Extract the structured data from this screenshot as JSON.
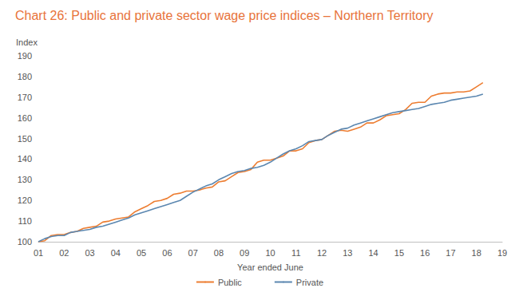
{
  "chart_data": {
    "type": "line",
    "title": "Chart 26: Public and private sector wage price indices – Northern Territory",
    "x_label": "Year ended June",
    "y_label": "Index",
    "x": [
      2001,
      2001.25,
      2001.5,
      2001.75,
      2002,
      2002.25,
      2002.5,
      2002.75,
      2003,
      2003.25,
      2003.5,
      2003.75,
      2004,
      2004.25,
      2004.5,
      2004.75,
      2005,
      2005.25,
      2005.5,
      2005.75,
      2006,
      2006.25,
      2006.5,
      2006.75,
      2007,
      2007.25,
      2007.5,
      2007.75,
      2008,
      2008.25,
      2008.5,
      2008.75,
      2009,
      2009.25,
      2009.5,
      2009.75,
      2010,
      2010.25,
      2010.5,
      2010.75,
      2011,
      2011.25,
      2011.5,
      2011.75,
      2012,
      2012.25,
      2012.5,
      2012.75,
      2013,
      2013.25,
      2013.5,
      2013.75,
      2014,
      2014.25,
      2014.5,
      2014.75,
      2015,
      2015.25,
      2015.5,
      2015.75,
      2016,
      2016.25,
      2016.5,
      2016.75,
      2017,
      2017.25,
      2017.5,
      2017.75,
      2018,
      2018.25
    ],
    "series": [
      {
        "name": "Public",
        "color": "#ed7d31",
        "values": [
          100,
          100.5,
          103,
          103.5,
          103.5,
          104.5,
          105,
          106.5,
          107,
          107.5,
          109.5,
          110,
          111,
          111.5,
          112,
          114.5,
          116,
          117.5,
          119.5,
          120,
          121,
          123,
          123.5,
          124.5,
          124.5,
          125,
          126,
          126.5,
          129,
          129.5,
          131.5,
          133.5,
          134,
          135,
          138.5,
          139.5,
          139.5,
          140.5,
          141.5,
          144,
          144,
          145,
          148,
          149,
          149.5,
          151.5,
          153.5,
          154,
          153.5,
          154.5,
          155.5,
          157.5,
          157.5,
          159,
          161,
          161.5,
          162,
          164,
          167,
          167.5,
          167.5,
          170.5,
          171.5,
          172,
          172,
          172.5,
          172.5,
          173,
          175,
          177
        ]
      },
      {
        "name": "Private",
        "color": "#5b87b0",
        "values": [
          100,
          101.5,
          102.5,
          103,
          103,
          104.5,
          105,
          105.5,
          106,
          107,
          107.5,
          108.5,
          109.5,
          110.5,
          111.5,
          113,
          114,
          115,
          116,
          117,
          118,
          119,
          120,
          122,
          124,
          125.5,
          127,
          128,
          130,
          131.5,
          133,
          134,
          134.5,
          135.5,
          136,
          137,
          138.5,
          140.5,
          142.5,
          144,
          145,
          146.5,
          148.5,
          149,
          149.5,
          151.5,
          153,
          154.5,
          155,
          156.5,
          157.5,
          158.5,
          159.5,
          160.5,
          161.5,
          162.5,
          163,
          163.5,
          164,
          164.5,
          165.5,
          166.5,
          167,
          167.5,
          168.5,
          169,
          169.5,
          170,
          170.5,
          171.5
        ]
      }
    ],
    "xlim": [
      2001,
      2019
    ],
    "xticks": [
      {
        "value": 2001,
        "label": "01"
      },
      {
        "value": 2002,
        "label": "02"
      },
      {
        "value": 2003,
        "label": "03"
      },
      {
        "value": 2004,
        "label": "04"
      },
      {
        "value": 2005,
        "label": "05"
      },
      {
        "value": 2006,
        "label": "06"
      },
      {
        "value": 2007,
        "label": "07"
      },
      {
        "value": 2008,
        "label": "08"
      },
      {
        "value": 2009,
        "label": "09"
      },
      {
        "value": 2010,
        "label": "10"
      },
      {
        "value": 2011,
        "label": "11"
      },
      {
        "value": 2012,
        "label": "12"
      },
      {
        "value": 2013,
        "label": "13"
      },
      {
        "value": 2014,
        "label": "14"
      },
      {
        "value": 2015,
        "label": "15"
      },
      {
        "value": 2016,
        "label": "16"
      },
      {
        "value": 2017,
        "label": "17"
      },
      {
        "value": 2018,
        "label": "18"
      },
      {
        "value": 2019,
        "label": "19"
      }
    ],
    "ylim": [
      100,
      190
    ],
    "yticks": [
      100,
      110,
      120,
      130,
      140,
      150,
      160,
      170,
      180,
      190
    ],
    "grid": false,
    "legend": "bottom"
  }
}
